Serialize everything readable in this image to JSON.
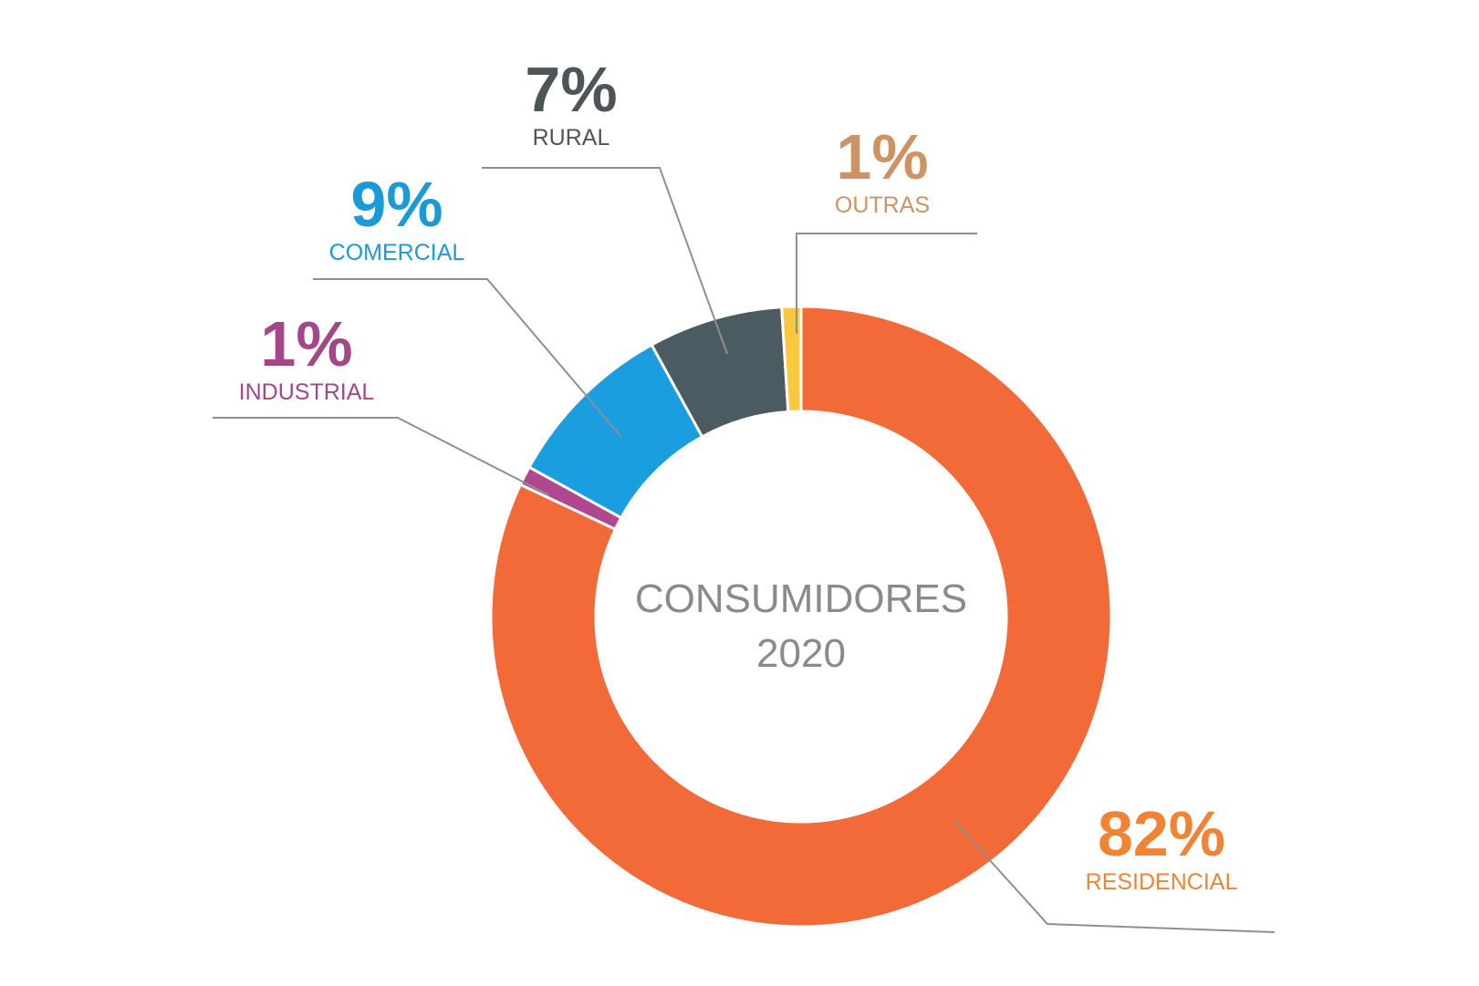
{
  "chart_data": {
    "type": "pie",
    "donut": true,
    "center_text": [
      "CONSUMIDORES",
      "2020"
    ],
    "slices": [
      {
        "label": "RESIDENCIAL",
        "value": 82,
        "value_label": "82%",
        "color": "#f26a38",
        "text_color": "#f28332"
      },
      {
        "label": "INDUSTRIAL",
        "value": 1,
        "value_label": "1%",
        "color": "#b1478f",
        "text_color": "#a3468a"
      },
      {
        "label": "COMERCIAL",
        "value": 9,
        "value_label": "9%",
        "color": "#1a9ee0",
        "text_color": "#1a9bd7"
      },
      {
        "label": "RURAL",
        "value": 7,
        "value_label": "7%",
        "color": "#4b5b62",
        "text_color": "#4d5559"
      },
      {
        "label": "OUTRAS",
        "value": 1,
        "value_label": "1%",
        "color": "#f9c83c",
        "text_color": "#cf9262"
      }
    ],
    "leader_line_color": "#8f8f8f"
  }
}
